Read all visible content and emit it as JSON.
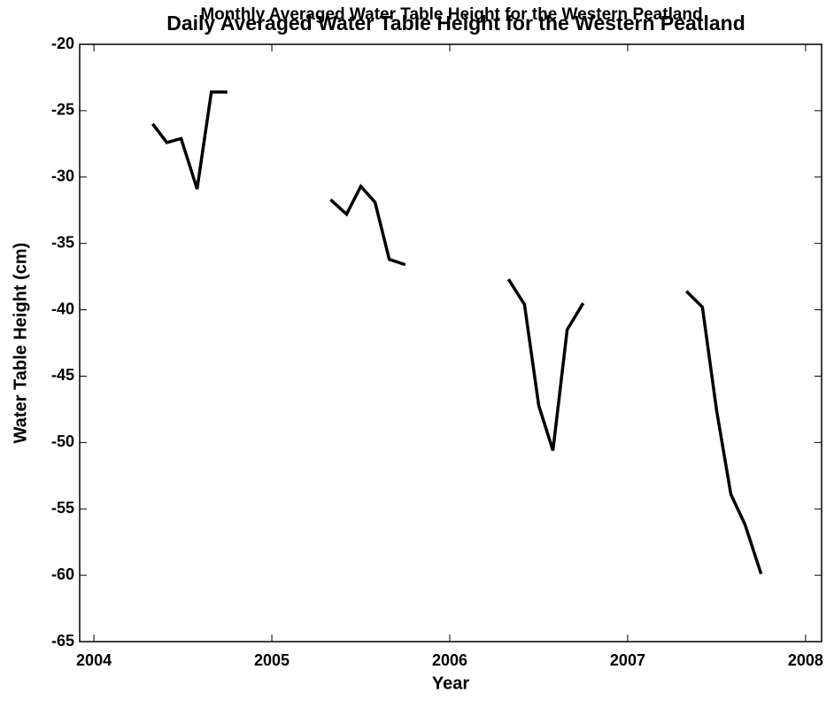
{
  "chart_data": {
    "type": "line",
    "title": "Daily  Averaged Water Table Height for the Western Peatland",
    "subtitle": "Monthly Averaged Water Table Height for the Western Peatland",
    "x_label": "Year",
    "y_label": "Water Table Height (cm)",
    "x": [
      2004.33,
      2004.41,
      2004.49,
      2004.58,
      2004.66,
      2004.75,
      2005.0,
      2005.33,
      2005.42,
      2005.5,
      2005.58,
      2005.66,
      2005.75,
      2006.0,
      2006.33,
      2006.42,
      2006.5,
      2006.58,
      2006.66,
      2006.75,
      2007.0,
      2007.33,
      2007.42,
      2007.5,
      2007.58,
      2007.66,
      2007.75
    ],
    "series": [
      {
        "name": "Water table height",
        "color": "#000000",
        "values": [
          -26.0,
          -27.4,
          -27.1,
          -30.9,
          -23.6,
          -23.6,
          null,
          -31.7,
          -32.8,
          -30.7,
          -31.9,
          -36.2,
          -36.6,
          null,
          -37.7,
          -39.6,
          -47.2,
          -50.6,
          -41.5,
          -39.5,
          null,
          -38.6,
          -39.8,
          -47.6,
          -53.9,
          -56.2,
          -59.9
        ]
      }
    ],
    "xlim": [
      2003.92,
      2008.09
    ],
    "xticks": [
      2004,
      2005,
      2006,
      2007,
      2008
    ],
    "ylim": [
      -65,
      -20
    ],
    "yticks": [
      -65,
      -60,
      -55,
      -50,
      -45,
      -40,
      -35,
      -30,
      -25,
      -20
    ],
    "grid": false
  }
}
